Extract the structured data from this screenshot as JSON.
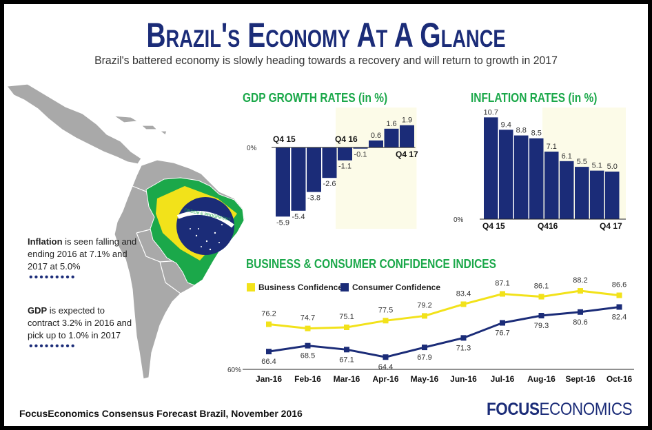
{
  "header": {
    "title": "Brazil's Economy At A Glance",
    "subtitle": "Brazil's battered economy is slowly heading towards a recovery and will return to growth in 2017"
  },
  "notes": [
    {
      "bold": "Inflation",
      "text": " is seen falling and ending 2016 at 7.1% and 2017 at 5.0%"
    },
    {
      "bold": "GDP",
      "text": " is expected to contract 3.2% in 2016 and pick up to 1.0% in 2017"
    }
  ],
  "footer": {
    "source": "FocusEconomics Consensus Forecast Brazil, November 2016",
    "logo_bold": "FOCUS",
    "logo_light": "ECONOMICS"
  },
  "colors": {
    "navy": "#1b2c78",
    "green": "#1ba84a",
    "yellow": "#f2e21a",
    "forecast_bg": "#fcfbe8",
    "map_gray": "#a9a9a9"
  },
  "chart_data": [
    {
      "type": "bar",
      "title": "GDP GROWTH RATES (in %)",
      "period_labels": [
        "Q4 15",
        "Q4 16",
        "Q4 17"
      ],
      "zero_label": "0%",
      "values": [
        -5.9,
        -5.4,
        -3.8,
        -2.6,
        -1.1,
        -0.1,
        0.6,
        1.6,
        1.9
      ],
      "value_labels": [
        "-5.9",
        "-5.4",
        "-3.8",
        "-2.6",
        "-1.1",
        "-0.1",
        "0.6",
        "1.6",
        "1.9"
      ],
      "forecast_start_index": 4,
      "color": "#1b2c78"
    },
    {
      "type": "bar",
      "title": "INFLATION RATES (in %)",
      "period_labels": [
        "Q4 15",
        "Q416",
        "Q4 17"
      ],
      "zero_label": "0%",
      "values": [
        10.7,
        9.4,
        8.8,
        8.5,
        7.1,
        6.1,
        5.5,
        5.1,
        5.0
      ],
      "value_labels": [
        "10.7",
        "9.4",
        "8.8",
        "8.5",
        "7.1",
        "6.1",
        "5.5",
        "5.1",
        "5.0"
      ],
      "forecast_start_index": 4,
      "color": "#1b2c78"
    },
    {
      "type": "line",
      "title": "BUSINESS & CONSUMER CONFIDENCE INDICES",
      "categories": [
        "Jan-16",
        "Feb-16",
        "Mar-16",
        "Apr-16",
        "May-16",
        "Jun-16",
        "Jul-16",
        "Aug-16",
        "Sept-16",
        "Oct-16"
      ],
      "ymin_label": "60%",
      "ylim": [
        60,
        92
      ],
      "series": [
        {
          "name": "Business Confidence",
          "color": "#f2e21a",
          "values": [
            76.2,
            74.7,
            75.1,
            77.5,
            79.2,
            83.4,
            87.1,
            86.1,
            88.2,
            86.6
          ],
          "labels": [
            "76.2",
            "74.7",
            "75.1",
            "77.5",
            "79.2",
            "83.4",
            "87.1",
            "86.1",
            "88.2",
            "86.6"
          ]
        },
        {
          "name": "Consumer Confidence",
          "color": "#1b2c78",
          "values": [
            66.4,
            68.5,
            67.1,
            64.4,
            67.9,
            71.3,
            76.7,
            79.3,
            80.6,
            82.4
          ],
          "labels": [
            "66.4",
            "68.5",
            "67.1",
            "64.4",
            "67.9",
            "71.3",
            "76.7",
            "79.3",
            "80.6",
            "82.4"
          ]
        }
      ]
    }
  ]
}
